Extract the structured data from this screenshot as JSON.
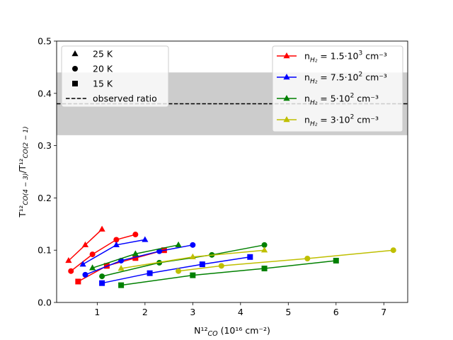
{
  "chart_data": {
    "type": "line",
    "title": "",
    "xlabel": "N¹²CO (10¹⁶ cm⁻²)",
    "ylabel": "T¹²CO(4−3)/T¹²CO(2−1)",
    "xlim": [
      0.15,
      7.5
    ],
    "ylim": [
      0.0,
      0.5
    ],
    "xticks": [
      1,
      2,
      3,
      4,
      5,
      6,
      7
    ],
    "yticks": [
      0.0,
      0.1,
      0.2,
      0.3,
      0.4,
      0.5
    ],
    "grid": false,
    "observed_ratio": {
      "value": 0.38,
      "band": [
        0.32,
        0.44
      ],
      "band_color": "#cccccc",
      "line_color": "#000000",
      "label": "observed ratio"
    },
    "marker_legend": {
      "placement": "top-left",
      "entries": [
        {
          "marker": "triangle",
          "label": "25 K"
        },
        {
          "marker": "circle",
          "label": "20 K"
        },
        {
          "marker": "square",
          "label": "15 K"
        },
        {
          "marker": "dashed",
          "label": "observed ratio"
        }
      ]
    },
    "series_legend": {
      "placement": "top-right",
      "entries": [
        {
          "color": "#ff0000",
          "label_main": "n",
          "label_sub": "H₂",
          "label_rest": " = 1.5·10",
          "label_sup": "3",
          "label_unit": " cm⁻³"
        },
        {
          "color": "#0000ff",
          "label_main": "n",
          "label_sub": "H₂",
          "label_rest": " = 7.5·10",
          "label_sup": "2",
          "label_unit": " cm⁻³"
        },
        {
          "color": "#008000",
          "label_main": "n",
          "label_sub": "H₂",
          "label_rest": " = 5·10",
          "label_sup": "2",
          "label_unit": " cm⁻³"
        },
        {
          "color": "#bfbf00",
          "label_main": "n",
          "label_sub": "H₂",
          "label_rest": " = 3·10",
          "label_sup": "2",
          "label_unit": " cm⁻³"
        }
      ]
    },
    "series": [
      {
        "name": "red 25 K",
        "color": "#ff0000",
        "marker": "triangle",
        "x": [
          0.4,
          0.75,
          1.1
        ],
        "y": [
          0.08,
          0.11,
          0.14
        ]
      },
      {
        "name": "red 20 K",
        "color": "#ff0000",
        "marker": "circle",
        "x": [
          0.45,
          0.9,
          1.4,
          1.8
        ],
        "y": [
          0.06,
          0.092,
          0.12,
          0.13
        ]
      },
      {
        "name": "red 15 K",
        "color": "#ff0000",
        "marker": "square",
        "x": [
          0.6,
          1.2,
          1.8,
          2.4
        ],
        "y": [
          0.04,
          0.07,
          0.085,
          0.1
        ]
      },
      {
        "name": "blue 25 K",
        "color": "#0000ff",
        "marker": "triangle",
        "x": [
          0.7,
          1.4,
          2.0
        ],
        "y": [
          0.073,
          0.11,
          0.12
        ]
      },
      {
        "name": "blue 20 K",
        "color": "#0000ff",
        "marker": "circle",
        "x": [
          0.75,
          1.5,
          2.3,
          3.0
        ],
        "y": [
          0.053,
          0.08,
          0.098,
          0.11
        ]
      },
      {
        "name": "blue 15 K",
        "color": "#0000ff",
        "marker": "square",
        "x": [
          1.1,
          2.1,
          3.2,
          4.2
        ],
        "y": [
          0.037,
          0.056,
          0.073,
          0.087
        ]
      },
      {
        "name": "green 25 K",
        "color": "#008000",
        "marker": "triangle",
        "x": [
          0.9,
          1.8,
          2.7
        ],
        "y": [
          0.066,
          0.093,
          0.11
        ]
      },
      {
        "name": "green 20 K",
        "color": "#008000",
        "marker": "circle",
        "x": [
          1.1,
          2.3,
          3.4,
          4.5
        ],
        "y": [
          0.05,
          0.076,
          0.091,
          0.11
        ]
      },
      {
        "name": "green 15 K",
        "color": "#008000",
        "marker": "square",
        "x": [
          1.5,
          3.0,
          4.5,
          6.0
        ],
        "y": [
          0.033,
          0.052,
          0.065,
          0.08
        ]
      },
      {
        "name": "yellow 25 K",
        "color": "#bfbf00",
        "marker": "triangle",
        "x": [
          1.5,
          3.0,
          4.5
        ],
        "y": [
          0.065,
          0.087,
          0.1
        ]
      },
      {
        "name": "yellow 20 K",
        "color": "#bfbf00",
        "marker": "circle",
        "x": [
          2.7,
          3.6,
          5.4,
          7.2
        ],
        "y": [
          0.06,
          0.07,
          0.084,
          0.1
        ]
      }
    ]
  }
}
